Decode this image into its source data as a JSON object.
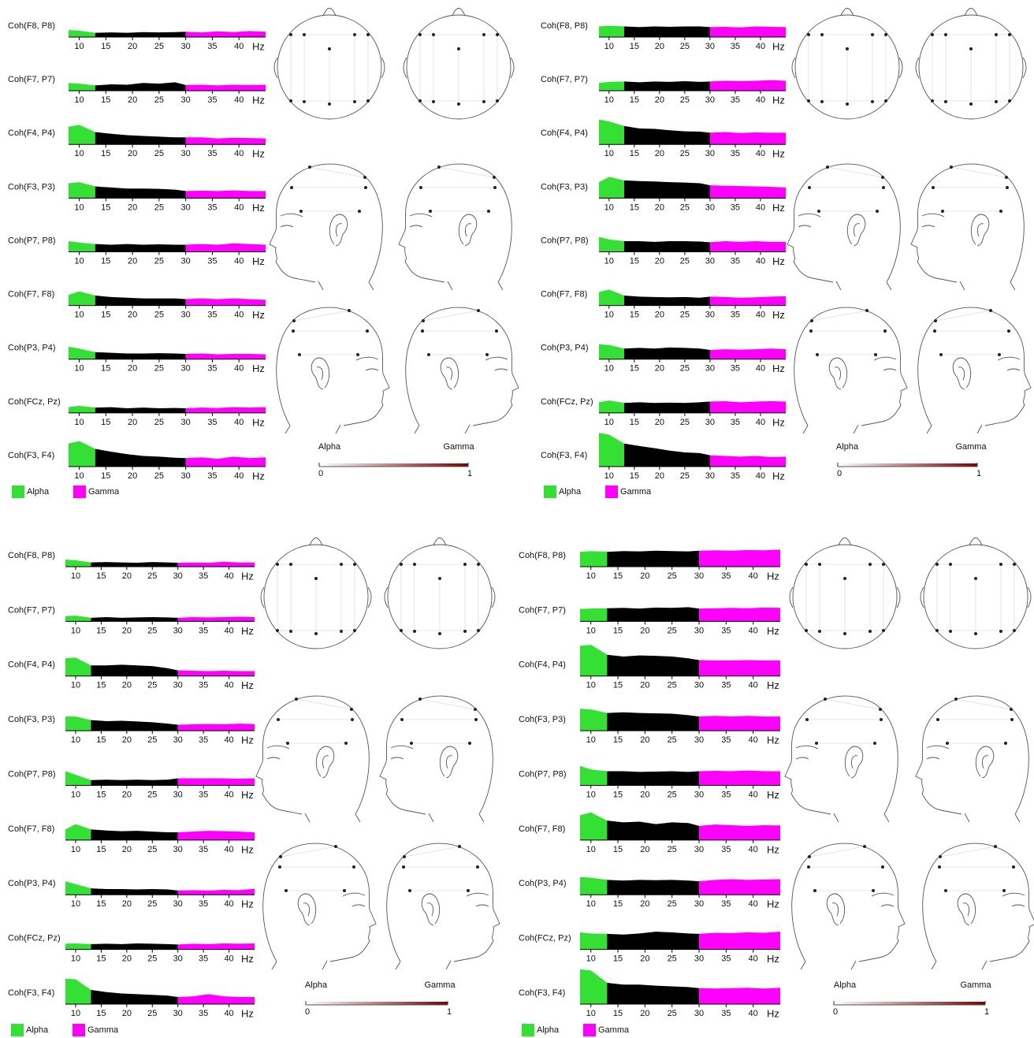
{
  "chart_data": [
    {
      "type": "area",
      "x": [
        8,
        10,
        13,
        16,
        19,
        22,
        25,
        28,
        30,
        33,
        36,
        39,
        42,
        45
      ],
      "xlim": [
        8,
        45
      ],
      "ylim": [
        0,
        1
      ],
      "xticks": [
        10,
        15,
        20,
        25,
        30,
        35,
        40
      ],
      "xlabel": "Hz",
      "band_edges": [
        13,
        30
      ],
      "band_colors": [
        "#33e033",
        "#000000",
        "#ff00ff"
      ],
      "charts": [
        {
          "label": "Coh(F8, P8)",
          "values": [
            0.2,
            0.18,
            0.12,
            0.13,
            0.12,
            0.14,
            0.13,
            0.14,
            0.15,
            0.13,
            0.16,
            0.14,
            0.17,
            0.15
          ]
        },
        {
          "label": "Coh(F7, P7)",
          "values": [
            0.22,
            0.2,
            0.15,
            0.18,
            0.17,
            0.22,
            0.2,
            0.24,
            0.16,
            0.17,
            0.15,
            0.17,
            0.16,
            0.17
          ]
        },
        {
          "label": "Coh(F4, P4)",
          "values": [
            0.5,
            0.55,
            0.35,
            0.3,
            0.26,
            0.24,
            0.22,
            0.2,
            0.2,
            0.2,
            0.17,
            0.19,
            0.18,
            0.17
          ]
        },
        {
          "label": "Coh(F3, P3)",
          "values": [
            0.42,
            0.45,
            0.33,
            0.3,
            0.27,
            0.27,
            0.26,
            0.24,
            0.2,
            0.21,
            0.2,
            0.22,
            0.2,
            0.2
          ]
        },
        {
          "label": "Coh(P7, P8)",
          "values": [
            0.3,
            0.26,
            0.22,
            0.2,
            0.22,
            0.2,
            0.21,
            0.2,
            0.2,
            0.22,
            0.2,
            0.24,
            0.22,
            0.2
          ]
        },
        {
          "label": "Coh(F7, F8)",
          "values": [
            0.3,
            0.4,
            0.28,
            0.24,
            0.22,
            0.2,
            0.2,
            0.2,
            0.18,
            0.2,
            0.18,
            0.2,
            0.18,
            0.16
          ]
        },
        {
          "label": "Coh(P3, P4)",
          "values": [
            0.35,
            0.3,
            0.2,
            0.18,
            0.16,
            0.16,
            0.17,
            0.16,
            0.15,
            0.16,
            0.14,
            0.15,
            0.15,
            0.14
          ]
        },
        {
          "label": "Coh(FCz, Pz)",
          "values": [
            0.16,
            0.2,
            0.15,
            0.16,
            0.13,
            0.15,
            0.13,
            0.14,
            0.13,
            0.15,
            0.14,
            0.16,
            0.15,
            0.16
          ]
        },
        {
          "label": "Coh(F3, F4)",
          "values": [
            0.65,
            0.72,
            0.5,
            0.42,
            0.35,
            0.3,
            0.28,
            0.25,
            0.24,
            0.26,
            0.22,
            0.28,
            0.24,
            0.26
          ]
        }
      ],
      "legend": [
        {
          "name": "Alpha",
          "color": "#33e033"
        },
        {
          "name": "Gamma",
          "color": "#ff00ff"
        }
      ],
      "colorbar": {
        "labels": [
          "Alpha",
          "Gamma"
        ],
        "ticks": [
          0,
          1
        ],
        "colors": [
          "#ffffff",
          "#7a0000"
        ]
      }
    },
    {
      "type": "area",
      "x": [
        8,
        10,
        13,
        16,
        19,
        22,
        25,
        28,
        30,
        33,
        36,
        39,
        42,
        45
      ],
      "xlim": [
        8,
        45
      ],
      "ylim": [
        0,
        1
      ],
      "xticks": [
        10,
        15,
        20,
        25,
        30,
        35,
        40
      ],
      "xlabel": "Hz",
      "band_edges": [
        13,
        30
      ],
      "band_colors": [
        "#33e033",
        "#000000",
        "#ff00ff"
      ],
      "charts": [
        {
          "label": "Coh(F8, P8)",
          "values": [
            0.3,
            0.32,
            0.3,
            0.28,
            0.3,
            0.29,
            0.3,
            0.3,
            0.28,
            0.29,
            0.27,
            0.3,
            0.29,
            0.28
          ]
        },
        {
          "label": "Coh(F7, P7)",
          "values": [
            0.22,
            0.25,
            0.26,
            0.24,
            0.26,
            0.25,
            0.27,
            0.25,
            0.26,
            0.28,
            0.27,
            0.28,
            0.3,
            0.28
          ]
        },
        {
          "label": "Coh(F4, P4)",
          "values": [
            0.7,
            0.65,
            0.52,
            0.45,
            0.44,
            0.4,
            0.37,
            0.36,
            0.33,
            0.35,
            0.32,
            0.34,
            0.33,
            0.33
          ]
        },
        {
          "label": "Coh(F3, P3)",
          "values": [
            0.45,
            0.6,
            0.5,
            0.48,
            0.47,
            0.45,
            0.44,
            0.42,
            0.36,
            0.35,
            0.34,
            0.33,
            0.32,
            0.3
          ]
        },
        {
          "label": "Coh(P7, P8)",
          "values": [
            0.42,
            0.35,
            0.3,
            0.3,
            0.28,
            0.3,
            0.3,
            0.29,
            0.27,
            0.3,
            0.28,
            0.3,
            0.28,
            0.28
          ]
        },
        {
          "label": "Coh(F7, F8)",
          "values": [
            0.38,
            0.45,
            0.28,
            0.25,
            0.24,
            0.23,
            0.24,
            0.22,
            0.25,
            0.24,
            0.22,
            0.23,
            0.25,
            0.26
          ]
        },
        {
          "label": "Coh(P3, P4)",
          "values": [
            0.42,
            0.4,
            0.3,
            0.32,
            0.3,
            0.33,
            0.32,
            0.3,
            0.26,
            0.28,
            0.27,
            0.28,
            0.3,
            0.28
          ]
        },
        {
          "label": "Coh(FCz, Pz)",
          "values": [
            0.3,
            0.35,
            0.28,
            0.3,
            0.28,
            0.29,
            0.28,
            0.3,
            0.32,
            0.33,
            0.3,
            0.32,
            0.33,
            0.32
          ]
        },
        {
          "label": "Coh(F3, F4)",
          "values": [
            0.95,
            0.9,
            0.65,
            0.58,
            0.52,
            0.45,
            0.4,
            0.38,
            0.32,
            0.3,
            0.28,
            0.3,
            0.27,
            0.28
          ]
        }
      ],
      "legend": [
        {
          "name": "Alpha",
          "color": "#33e033"
        },
        {
          "name": "Gamma",
          "color": "#ff00ff"
        }
      ],
      "colorbar": {
        "labels": [
          "Alpha",
          "Gamma"
        ],
        "ticks": [
          0,
          1
        ],
        "colors": [
          "#ffffff",
          "#7a0000"
        ]
      }
    },
    {
      "type": "area",
      "x": [
        8,
        10,
        13,
        16,
        19,
        22,
        25,
        28,
        30,
        33,
        36,
        39,
        42,
        45
      ],
      "xlim": [
        8,
        45
      ],
      "ylim": [
        0,
        1
      ],
      "xticks": [
        10,
        15,
        20,
        25,
        30,
        35,
        40
      ],
      "xlabel": "Hz",
      "band_edges": [
        13,
        30
      ],
      "band_colors": [
        "#33e033",
        "#000000",
        "#ff00ff"
      ],
      "charts": [
        {
          "label": "Coh(F8, P8)",
          "values": [
            0.2,
            0.18,
            0.12,
            0.13,
            0.12,
            0.11,
            0.13,
            0.12,
            0.11,
            0.12,
            0.11,
            0.14,
            0.12,
            0.12
          ]
        },
        {
          "label": "Coh(F7, P7)",
          "values": [
            0.15,
            0.16,
            0.1,
            0.12,
            0.1,
            0.11,
            0.12,
            0.11,
            0.1,
            0.12,
            0.11,
            0.12,
            0.13,
            0.12
          ]
        },
        {
          "label": "Coh(F4, P4)",
          "values": [
            0.5,
            0.52,
            0.3,
            0.3,
            0.32,
            0.3,
            0.28,
            0.22,
            0.16,
            0.15,
            0.14,
            0.15,
            0.14,
            0.14
          ]
        },
        {
          "label": "Coh(F3, P3)",
          "values": [
            0.4,
            0.4,
            0.3,
            0.27,
            0.28,
            0.26,
            0.24,
            0.2,
            0.17,
            0.18,
            0.19,
            0.18,
            0.2,
            0.19
          ]
        },
        {
          "label": "Coh(P7, P8)",
          "values": [
            0.4,
            0.3,
            0.15,
            0.16,
            0.15,
            0.16,
            0.15,
            0.16,
            0.2,
            0.2,
            0.2,
            0.2,
            0.19,
            0.2
          ]
        },
        {
          "label": "Coh(F7, F8)",
          "values": [
            0.3,
            0.45,
            0.3,
            0.27,
            0.25,
            0.26,
            0.24,
            0.22,
            0.22,
            0.24,
            0.26,
            0.25,
            0.24,
            0.22
          ]
        },
        {
          "label": "Coh(P3, P4)",
          "values": [
            0.38,
            0.3,
            0.18,
            0.16,
            0.16,
            0.15,
            0.16,
            0.15,
            0.12,
            0.13,
            0.12,
            0.14,
            0.13,
            0.17
          ]
        },
        {
          "label": "Coh(FCz, Pz)",
          "values": [
            0.16,
            0.17,
            0.15,
            0.16,
            0.15,
            0.17,
            0.16,
            0.15,
            0.14,
            0.16,
            0.15,
            0.17,
            0.16,
            0.17
          ]
        },
        {
          "label": "Coh(F3, F4)",
          "values": [
            0.72,
            0.7,
            0.4,
            0.34,
            0.3,
            0.28,
            0.26,
            0.24,
            0.2,
            0.22,
            0.28,
            0.22,
            0.2,
            0.2
          ]
        }
      ],
      "legend": [
        {
          "name": "Alpha",
          "color": "#33e033"
        },
        {
          "name": "Gamma",
          "color": "#ff00ff"
        }
      ],
      "colorbar": {
        "labels": [
          "Alpha",
          "Gamma"
        ],
        "ticks": [
          0,
          1
        ],
        "colors": [
          "#ffffff",
          "#7a0000"
        ]
      }
    },
    {
      "type": "area",
      "x": [
        8,
        10,
        13,
        16,
        19,
        22,
        25,
        28,
        30,
        33,
        36,
        39,
        42,
        45
      ],
      "xlim": [
        8,
        45
      ],
      "ylim": [
        0,
        1
      ],
      "xticks": [
        10,
        15,
        20,
        25,
        30,
        35,
        40
      ],
      "xlabel": "Hz",
      "band_edges": [
        13,
        30
      ],
      "band_colors": [
        "#33e033",
        "#000000",
        "#ff00ff"
      ],
      "charts": [
        {
          "label": "Coh(F8, P8)",
          "values": [
            0.42,
            0.44,
            0.42,
            0.44,
            0.43,
            0.45,
            0.44,
            0.43,
            0.45,
            0.46,
            0.45,
            0.47,
            0.46,
            0.48
          ]
        },
        {
          "label": "Coh(F7, P7)",
          "values": [
            0.35,
            0.36,
            0.37,
            0.38,
            0.36,
            0.39,
            0.38,
            0.4,
            0.36,
            0.37,
            0.38,
            0.37,
            0.39,
            0.38
          ]
        },
        {
          "label": "Coh(F4, P4)",
          "values": [
            0.85,
            0.88,
            0.6,
            0.55,
            0.58,
            0.57,
            0.55,
            0.5,
            0.45,
            0.44,
            0.44,
            0.45,
            0.44,
            0.44
          ]
        },
        {
          "label": "Coh(F3, P3)",
          "values": [
            0.62,
            0.6,
            0.5,
            0.52,
            0.5,
            0.49,
            0.48,
            0.44,
            0.4,
            0.42,
            0.4,
            0.42,
            0.4,
            0.4
          ]
        },
        {
          "label": "Coh(P7, P8)",
          "values": [
            0.55,
            0.45,
            0.4,
            0.4,
            0.38,
            0.39,
            0.4,
            0.38,
            0.4,
            0.41,
            0.4,
            0.42,
            0.4,
            0.4
          ]
        },
        {
          "label": "Coh(F7, F8)",
          "values": [
            0.7,
            0.78,
            0.55,
            0.5,
            0.52,
            0.45,
            0.5,
            0.48,
            0.4,
            0.44,
            0.42,
            0.4,
            0.42,
            0.41
          ]
        },
        {
          "label": "Coh(P3, P4)",
          "values": [
            0.5,
            0.48,
            0.42,
            0.4,
            0.42,
            0.41,
            0.42,
            0.4,
            0.38,
            0.42,
            0.44,
            0.42,
            0.43,
            0.44
          ]
        },
        {
          "label": "Coh(FCz, Pz)",
          "values": [
            0.48,
            0.45,
            0.44,
            0.42,
            0.45,
            0.5,
            0.48,
            0.45,
            0.44,
            0.47,
            0.46,
            0.48,
            0.47,
            0.5
          ]
        },
        {
          "label": "Coh(F3, F4)",
          "values": [
            0.98,
            0.95,
            0.6,
            0.55,
            0.55,
            0.52,
            0.5,
            0.48,
            0.45,
            0.44,
            0.45,
            0.46,
            0.44,
            0.46
          ]
        }
      ],
      "legend": [
        {
          "name": "Alpha",
          "color": "#33e033"
        },
        {
          "name": "Gamma",
          "color": "#ff00ff"
        }
      ],
      "colorbar": {
        "labels": [
          "Alpha",
          "Gamma"
        ],
        "ticks": [
          0,
          1
        ],
        "colors": [
          "#ffffff",
          "#7a0000"
        ]
      }
    }
  ]
}
